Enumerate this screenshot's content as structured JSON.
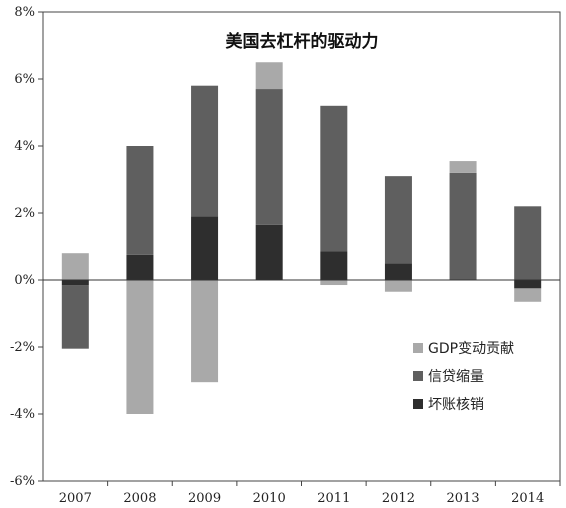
{
  "chart_data": {
    "type": "bar",
    "stacked": true,
    "title": "美国去杠杆的驱动力",
    "categories": [
      "2007",
      "2008",
      "2009",
      "2010",
      "2011",
      "2012",
      "2013",
      "2014"
    ],
    "y_ticks": [
      "8%",
      "6%",
      "4%",
      "2%",
      "0%",
      "-2%",
      "-4%",
      "-6%"
    ],
    "ylim": [
      -6,
      8
    ],
    "grid": false,
    "legend_position": "bottom-right",
    "series": [
      {
        "name": "坏账核销",
        "color": "#2e2e2e",
        "values": [
          -0.15,
          0.75,
          1.9,
          1.65,
          0.85,
          0.5,
          0,
          -0.25
        ]
      },
      {
        "name": "信贷缩量",
        "color": "#5f5f5f",
        "values": [
          -1.9,
          3.25,
          3.9,
          4.05,
          4.35,
          2.6,
          3.2,
          2.2
        ]
      },
      {
        "name": "GDP变动贡献",
        "color": "#a9a9a9",
        "values": [
          0.8,
          -4.0,
          -3.05,
          0.8,
          -0.15,
          -0.35,
          0.35,
          -0.4
        ]
      }
    ],
    "legend_order": [
      2,
      1,
      0
    ]
  }
}
